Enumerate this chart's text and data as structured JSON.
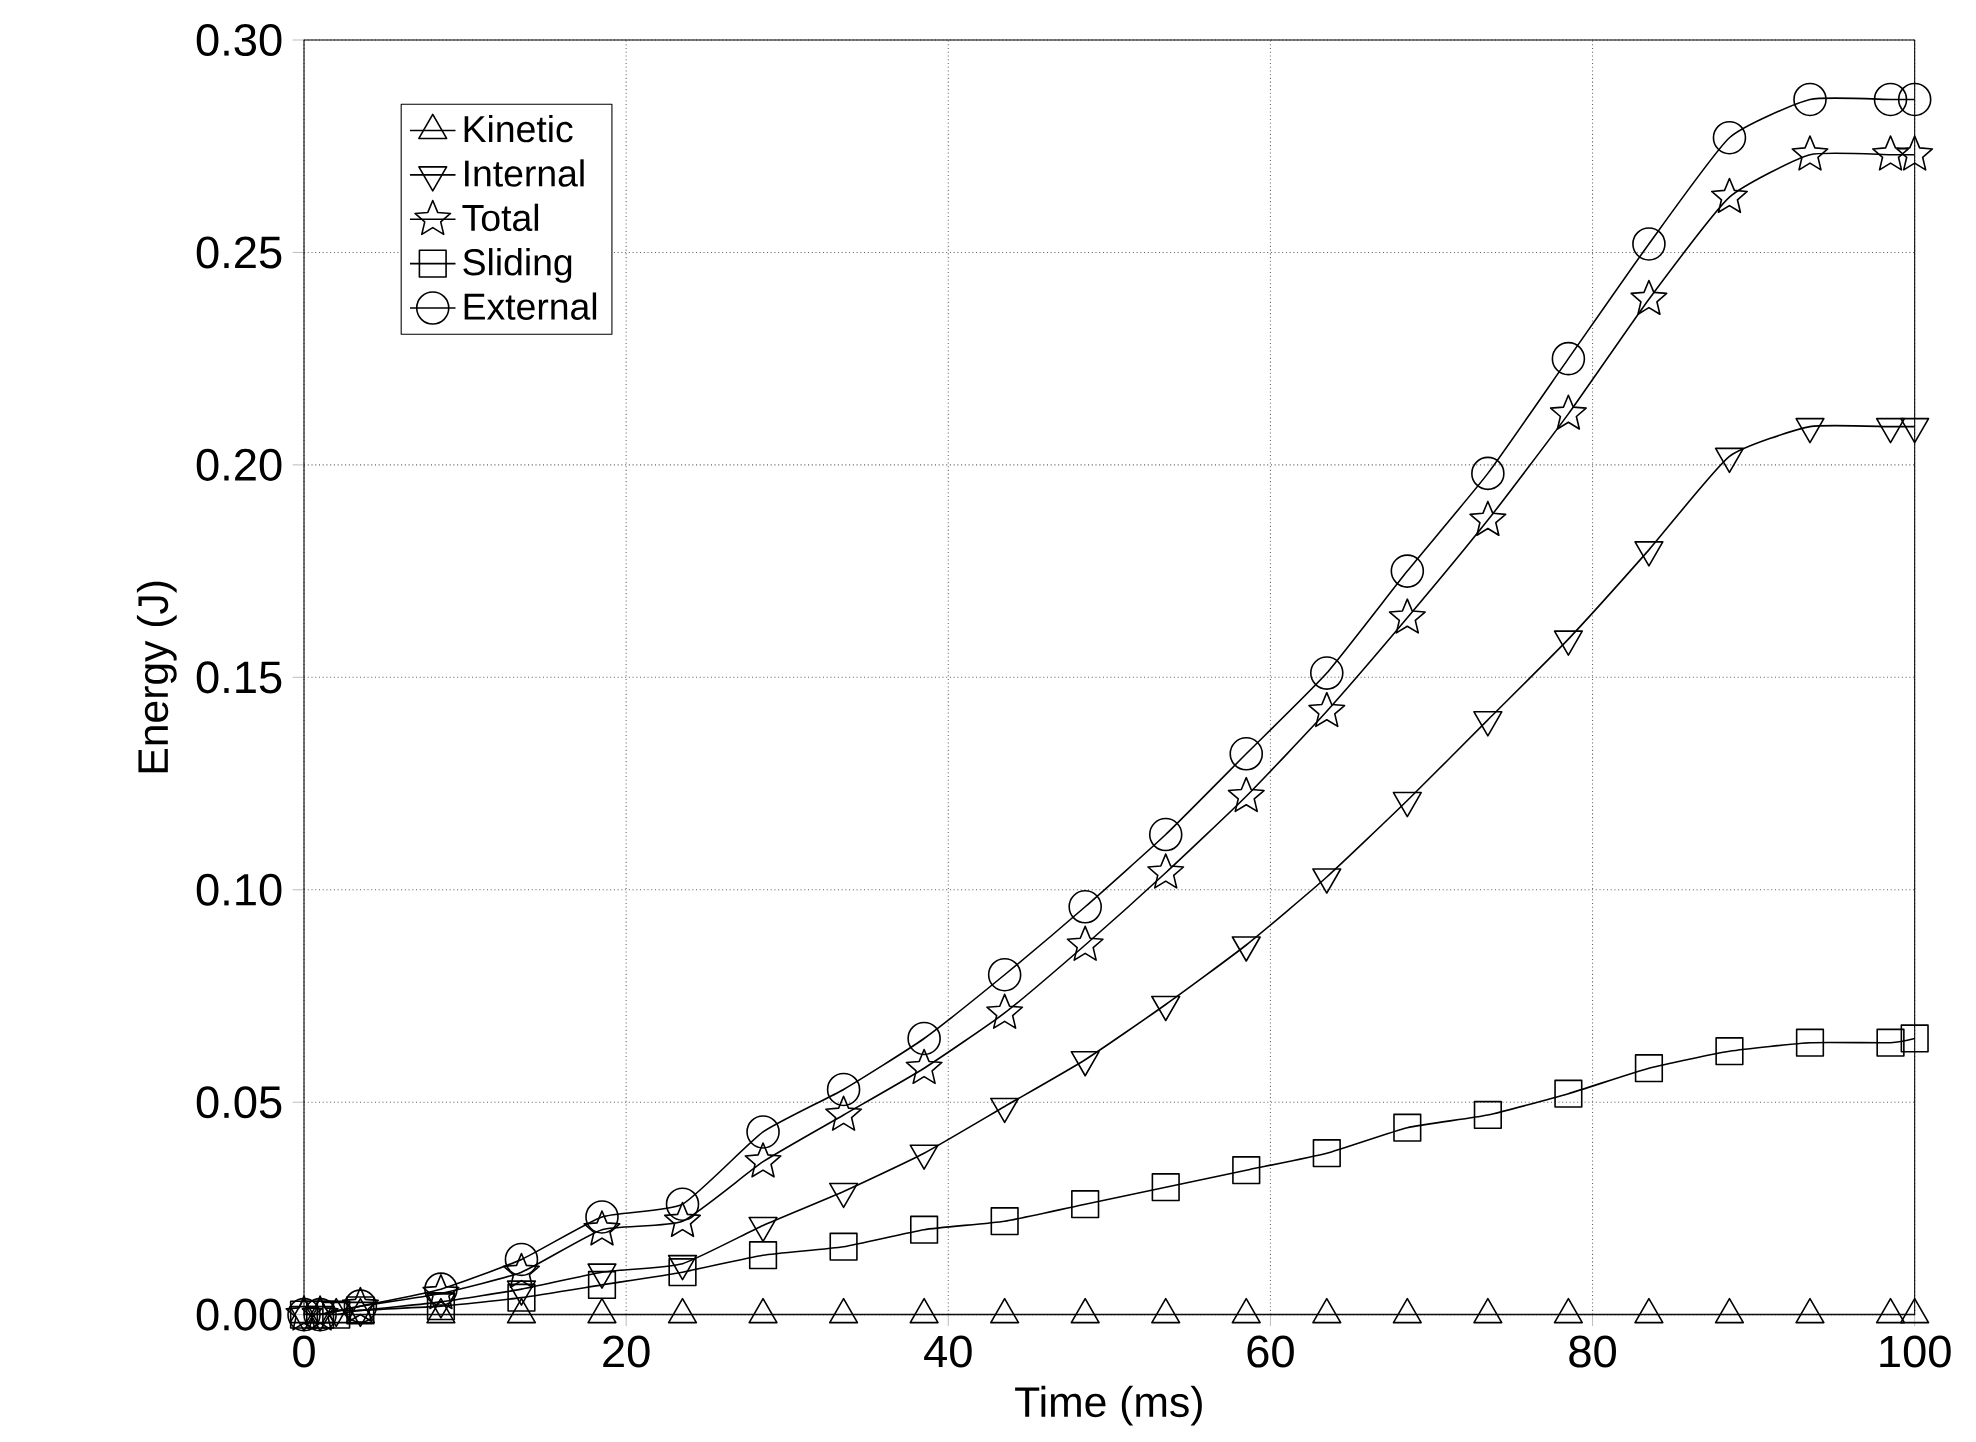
{
  "chart_data": {
    "type": "line",
    "xlabel": "Time (ms)",
    "ylabel": "Energy (J)",
    "x": [
      0,
      1,
      2,
      3.5,
      8.5,
      13.5,
      18.5,
      23.5,
      28.5,
      33.5,
      38.5,
      43.5,
      48.5,
      53.5,
      58.5,
      63.5,
      68.5,
      73.5,
      78.5,
      83.5,
      88.5,
      93.5,
      98.5,
      100
    ],
    "series": [
      {
        "name": "Kinetic",
        "color": "#000000",
        "marker": "triangle",
        "values": [
          0,
          0,
          0,
          0,
          0,
          0,
          0,
          0,
          0,
          0,
          0,
          0,
          0,
          0,
          0,
          0,
          0,
          0,
          0,
          0,
          0,
          0,
          0,
          0
        ]
      },
      {
        "name": "Internal",
        "color": "#000000",
        "marker": "triangle-down",
        "values": [
          0,
          0,
          0.001,
          0.001,
          0.003,
          0.006,
          0.01,
          0.012,
          0.021,
          0.029,
          0.038,
          0.049,
          0.06,
          0.073,
          0.087,
          0.103,
          0.121,
          0.14,
          0.159,
          0.18,
          0.202,
          0.209,
          0.209,
          0.209
        ]
      },
      {
        "name": "Total",
        "color": "#000000",
        "marker": "star",
        "values": [
          0,
          0,
          null,
          0.002,
          0.005,
          0.01,
          0.02,
          0.022,
          0.036,
          0.047,
          0.058,
          0.071,
          0.087,
          0.104,
          0.122,
          0.142,
          0.164,
          0.187,
          0.212,
          0.239,
          0.263,
          0.273,
          0.273,
          0.273
        ]
      },
      {
        "name": "Sliding",
        "color": "#000000",
        "marker": "square",
        "values": [
          0,
          0,
          0,
          0.001,
          0.002,
          0.004,
          0.007,
          0.01,
          0.014,
          0.016,
          0.02,
          0.022,
          0.026,
          0.03,
          0.034,
          0.038,
          0.044,
          0.047,
          0.052,
          0.058,
          0.062,
          0.064,
          0.064,
          0.065
        ]
      },
      {
        "name": "External",
        "color": "#000000",
        "marker": "circle",
        "values": [
          0,
          0,
          null,
          0.002,
          0.006,
          0.013,
          0.023,
          0.026,
          0.043,
          0.053,
          0.065,
          0.08,
          0.096,
          0.113,
          0.132,
          0.151,
          0.175,
          0.198,
          0.225,
          0.252,
          0.277,
          0.286,
          0.286,
          0.286
        ]
      }
    ],
    "xlim": [
      0,
      100
    ],
    "xticks": [
      0,
      20,
      40,
      60,
      80,
      100
    ],
    "ylim": [
      0,
      0.3
    ],
    "yticks": [
      {
        "value": 0,
        "label": "0.00"
      },
      {
        "value": 0.05,
        "label": "0.05"
      },
      {
        "value": 0.1,
        "label": "0.10"
      },
      {
        "value": 0.15,
        "label": "0.15"
      },
      {
        "value": 0.2,
        "label": "0.20"
      },
      {
        "value": 0.25,
        "label": "0.25"
      },
      {
        "value": 0.3,
        "label": "0.30"
      }
    ],
    "grid": true,
    "legend": "top left",
    "line_style": "solid"
  }
}
